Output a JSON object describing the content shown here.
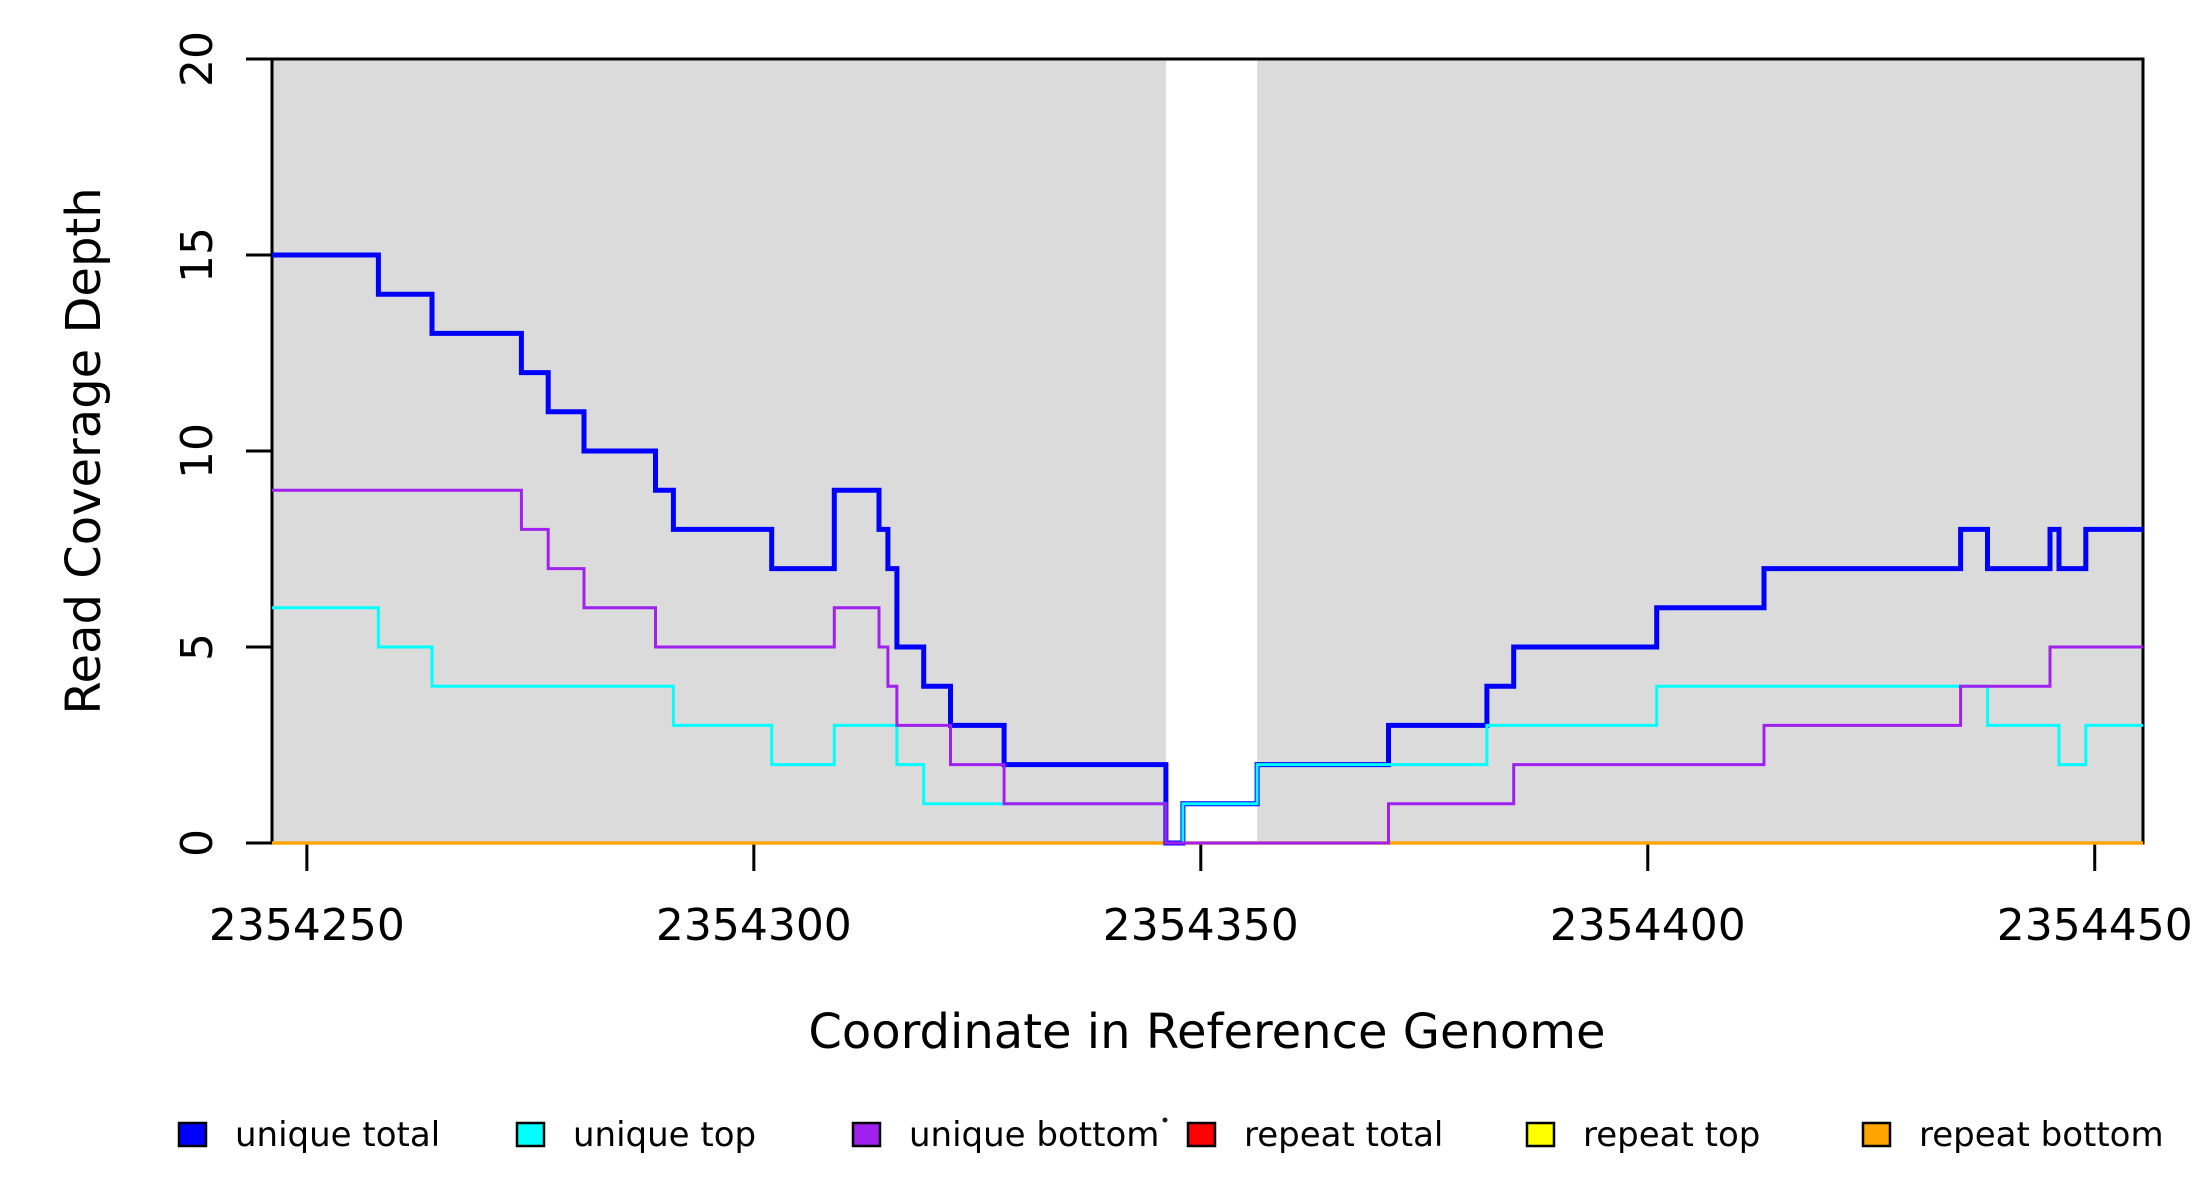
{
  "figure": {
    "background_color": "#FFFFFF",
    "plot_background_color": "#FFFFFF"
  },
  "chart_data": {
    "type": "line",
    "subtype": "step-coverage-plot",
    "title": "",
    "xlabel": "Coordinate in Reference Genome",
    "ylabel": "Read Coverage Depth",
    "xlim": [
      2354246.1,
      2354455.4
    ],
    "ylim": [
      0,
      20
    ],
    "x_ticks": [
      2354250,
      2354300,
      2354350,
      2354400,
      2354450
    ],
    "y_ticks": [
      0,
      5,
      10,
      15,
      20
    ],
    "grid": false,
    "box": true,
    "legend_position": "bottom-horizontal",
    "shaded_regions": [
      {
        "x0": 2354246.1,
        "x1": 2354346.1,
        "color": "#DBDBDB"
      },
      {
        "x0": 2354356.3,
        "x1": 2354455.4,
        "color": "#DBDBDB"
      }
    ],
    "series": [
      {
        "name": "unique total",
        "color": "#0000FF",
        "line_width": 5,
        "end_x": 2354455.4,
        "steps": [
          [
            2354246.1,
            15
          ],
          [
            2354258,
            14
          ],
          [
            2354264,
            13
          ],
          [
            2354274,
            12
          ],
          [
            2354277,
            11
          ],
          [
            2354281,
            10
          ],
          [
            2354289,
            9
          ],
          [
            2354291,
            8
          ],
          [
            2354302,
            7
          ],
          [
            2354309,
            9
          ],
          [
            2354314,
            8
          ],
          [
            2354315,
            7
          ],
          [
            2354316,
            5
          ],
          [
            2354319,
            4
          ],
          [
            2354322,
            3
          ],
          [
            2354328,
            2
          ],
          [
            2354346.1,
            0
          ],
          [
            2354348,
            1
          ],
          [
            2354356.3,
            2
          ],
          [
            2354371,
            3
          ],
          [
            2354382,
            4
          ],
          [
            2354385,
            5
          ],
          [
            2354401,
            6
          ],
          [
            2354413,
            7
          ],
          [
            2354435,
            8
          ],
          [
            2354438,
            7
          ],
          [
            2354445,
            8
          ],
          [
            2354446,
            7
          ],
          [
            2354449,
            8
          ]
        ]
      },
      {
        "name": "unique top",
        "color": "#00FFFF",
        "line_width": 3,
        "end_x": 2354455.4,
        "steps": [
          [
            2354246.1,
            6
          ],
          [
            2354258,
            5
          ],
          [
            2354264,
            4
          ],
          [
            2354291,
            3
          ],
          [
            2354302,
            2
          ],
          [
            2354309,
            3
          ],
          [
            2354316,
            2
          ],
          [
            2354319,
            1
          ],
          [
            2354346.1,
            0
          ],
          [
            2354348,
            1
          ],
          [
            2354356.3,
            2
          ],
          [
            2354382,
            3
          ],
          [
            2354401,
            4
          ],
          [
            2354438,
            3
          ],
          [
            2354446,
            2
          ],
          [
            2354449,
            3
          ]
        ]
      },
      {
        "name": "unique bottom",
        "color": "#A020F0",
        "line_width": 3,
        "end_x": 2354455.4,
        "steps": [
          [
            2354246.1,
            9
          ],
          [
            2354274,
            8
          ],
          [
            2354277,
            7
          ],
          [
            2354281,
            6
          ],
          [
            2354289,
            5
          ],
          [
            2354309,
            6
          ],
          [
            2354314,
            5
          ],
          [
            2354315,
            4
          ],
          [
            2354316,
            3
          ],
          [
            2354322,
            2
          ],
          [
            2354328,
            1
          ],
          [
            2354346.1,
            0
          ],
          [
            2354371,
            1
          ],
          [
            2354385,
            2
          ],
          [
            2354413,
            3
          ],
          [
            2354435,
            4
          ],
          [
            2354445,
            5
          ]
        ]
      },
      {
        "name": "repeat total",
        "color": "#FF0000",
        "line_width": 3,
        "end_x": 2354455.4,
        "steps": [
          [
            2354246.1,
            0
          ]
        ]
      },
      {
        "name": "repeat top",
        "color": "#FFFF00",
        "line_width": 3,
        "end_x": 2354455.4,
        "steps": [
          [
            2354246.1,
            0
          ]
        ]
      },
      {
        "name": "repeat bottom",
        "color": "#FFA500",
        "line_width": 3.5,
        "end_x": 2354455.4,
        "steps": [
          [
            2354246.1,
            0
          ]
        ]
      }
    ],
    "draw_order": [
      "repeat total",
      "repeat top",
      "repeat bottom",
      "unique total",
      "unique top",
      "unique bottom"
    ],
    "legend": [
      {
        "label": "unique total",
        "color": "#0000FF"
      },
      {
        "label": "unique top",
        "color": "#00FFFF"
      },
      {
        "label": "unique bottom",
        "color": "#A020F0"
      },
      {
        "label": "repeat total",
        "color": "#FF0000"
      },
      {
        "label": "repeat top",
        "color": "#FFFF00"
      },
      {
        "label": "repeat bottom",
        "color": "#FFA500"
      }
    ]
  }
}
